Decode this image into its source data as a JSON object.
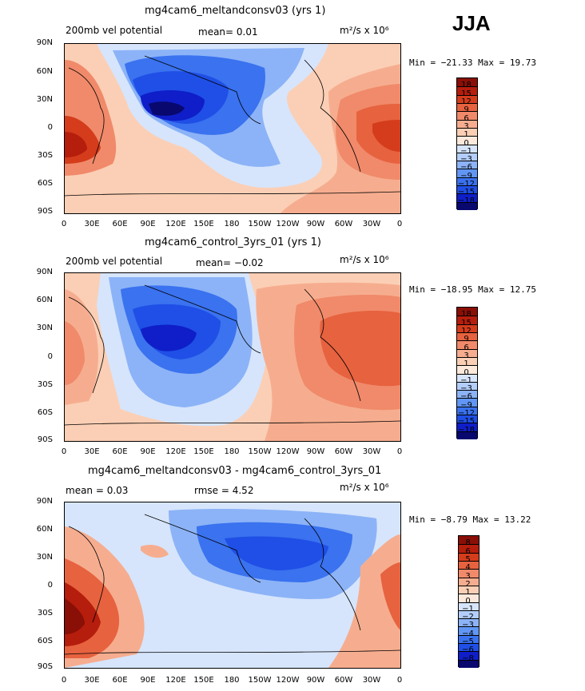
{
  "season": "JJA",
  "units_label": "m²/s x 10⁶",
  "latitude_ticks": [
    "90N",
    "60N",
    "30N",
    "0",
    "30S",
    "60S",
    "90S"
  ],
  "longitude_ticks": [
    "0",
    "30E",
    "60E",
    "90E",
    "120E",
    "150E",
    "180",
    "150W",
    "120W",
    "90W",
    "60W",
    "30W",
    "0"
  ],
  "palette": [
    "#08086e",
    "#0f1ec8",
    "#1f4fe6",
    "#3a72ef",
    "#6196f4",
    "#8cb3f7",
    "#b3cefa",
    "#d6e5fc",
    "#fde9dc",
    "#fbcfb5",
    "#f6ad8f",
    "#f08a6a",
    "#e7623f",
    "#d43c1c",
    "#b51d0c",
    "#8a0f06"
  ],
  "panels": [
    {
      "title": "mg4cam6_meltandconsv03 (yrs 1)",
      "header_left": "200mb vel potential",
      "header_mid": "mean=   0.01",
      "min_max": "Min = −21.33  Max =  19.73",
      "colorbar_labels": [
        "18",
        "15",
        "12",
        "9",
        "6",
        "3",
        "1",
        "0",
        "−1",
        "−3",
        "−6",
        "−9",
        "−12",
        "−15",
        "−18"
      ],
      "lonlabels_prefix": "p1"
    },
    {
      "title": "mg4cam6_control_3yrs_01 (yrs 1)",
      "header_left": "200mb vel potential",
      "header_mid": "mean=  −0.02",
      "min_max": "Min = −18.95  Max =  12.75",
      "colorbar_labels": [
        "18",
        "15",
        "12",
        "9",
        "6",
        "3",
        "1",
        "0",
        "−1",
        "−3",
        "−6",
        "−9",
        "−12",
        "−15",
        "−18"
      ],
      "lonlabels_prefix": "p2"
    },
    {
      "title": "mg4cam6_meltandconsv03 - mg4cam6_control_3yrs_01",
      "header_left": "mean =    0.03",
      "header_mid": "rmse =    4.52",
      "min_max": "Min =  −8.79  Max =  13.22",
      "colorbar_labels": [
        "8",
        "6",
        "5",
        "4",
        "3",
        "2",
        "1",
        "0",
        "−1",
        "−2",
        "−3",
        "−4",
        "−5",
        "−6",
        "−8"
      ],
      "lonlabels_prefix": "p3"
    }
  ]
}
